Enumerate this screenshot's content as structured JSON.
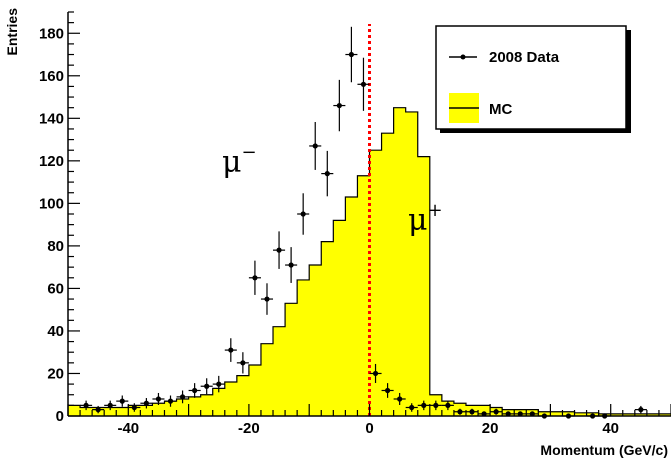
{
  "chart_data": {
    "type": "histogram",
    "xlabel": "Momentum (GeV/c)",
    "ylabel": "Entries",
    "xlim": [
      -50,
      50
    ],
    "ylim": [
      0,
      190
    ],
    "x_ticks": [
      -40,
      -20,
      0,
      20,
      40
    ],
    "y_ticks": [
      0,
      20,
      40,
      60,
      80,
      100,
      120,
      140,
      160,
      180
    ],
    "bin_width": 2,
    "bin_edges_start": -50,
    "grid": false,
    "legend_position": "top-right",
    "series": [
      {
        "name": "MC",
        "style": "filled-histogram",
        "color": "#ffff00",
        "values": [
          5,
          4,
          4,
          4,
          4,
          5,
          5,
          6,
          7,
          8,
          9,
          10,
          13,
          16,
          19,
          24,
          34,
          42,
          53,
          64,
          71,
          82,
          92,
          103,
          113,
          125,
          133,
          145,
          143,
          122,
          10,
          7,
          6,
          5,
          5,
          4,
          3,
          3,
          3,
          2,
          2,
          2,
          1.5,
          1.5,
          1,
          1,
          1,
          1,
          1,
          1
        ]
      },
      {
        "name": "2008 Data",
        "style": "points-with-errors",
        "color": "#000000",
        "points": [
          {
            "x": -47,
            "y": 5
          },
          {
            "x": -45,
            "y": 3
          },
          {
            "x": -43,
            "y": 5
          },
          {
            "x": -41,
            "y": 7
          },
          {
            "x": -39,
            "y": 4
          },
          {
            "x": -37,
            "y": 6
          },
          {
            "x": -35,
            "y": 8
          },
          {
            "x": -33,
            "y": 7
          },
          {
            "x": -31,
            "y": 9
          },
          {
            "x": -29,
            "y": 12
          },
          {
            "x": -27,
            "y": 14
          },
          {
            "x": -25,
            "y": 15
          },
          {
            "x": -23,
            "y": 31
          },
          {
            "x": -21,
            "y": 25
          },
          {
            "x": -19,
            "y": 65
          },
          {
            "x": -17,
            "y": 55
          },
          {
            "x": -15,
            "y": 78
          },
          {
            "x": -13,
            "y": 71
          },
          {
            "x": -11,
            "y": 95
          },
          {
            "x": -9,
            "y": 127
          },
          {
            "x": -7,
            "y": 114
          },
          {
            "x": -5,
            "y": 146
          },
          {
            "x": -3,
            "y": 170
          },
          {
            "x": -1,
            "y": 156
          },
          {
            "x": 1,
            "y": 20
          },
          {
            "x": 3,
            "y": 12
          },
          {
            "x": 5,
            "y": 8
          },
          {
            "x": 7,
            "y": 4
          },
          {
            "x": 9,
            "y": 5
          },
          {
            "x": 11,
            "y": 5
          },
          {
            "x": 13,
            "y": 5
          },
          {
            "x": 15,
            "y": 2
          },
          {
            "x": 17,
            "y": 2
          },
          {
            "x": 19,
            "y": 1
          },
          {
            "x": 21,
            "y": 2
          },
          {
            "x": 23,
            "y": 1
          },
          {
            "x": 25,
            "y": 1
          },
          {
            "x": 27,
            "y": 1
          },
          {
            "x": 29,
            "y": 0
          },
          {
            "x": 33,
            "y": 0
          },
          {
            "x": 37,
            "y": 0
          },
          {
            "x": 39,
            "y": 0
          },
          {
            "x": 45,
            "y": 3
          }
        ]
      }
    ],
    "cut_line": {
      "x": 0,
      "color": "#ff0000",
      "style": "dotted"
    },
    "annotations": [
      {
        "text": "μ",
        "sup": "−",
        "x": -30,
        "y": 120
      },
      {
        "text": "μ",
        "sup": "+",
        "x": 10,
        "y": 90
      }
    ]
  },
  "legend": {
    "data_label": "2008 Data",
    "mc_label": "MC",
    "mc_color": "#ffff00"
  }
}
